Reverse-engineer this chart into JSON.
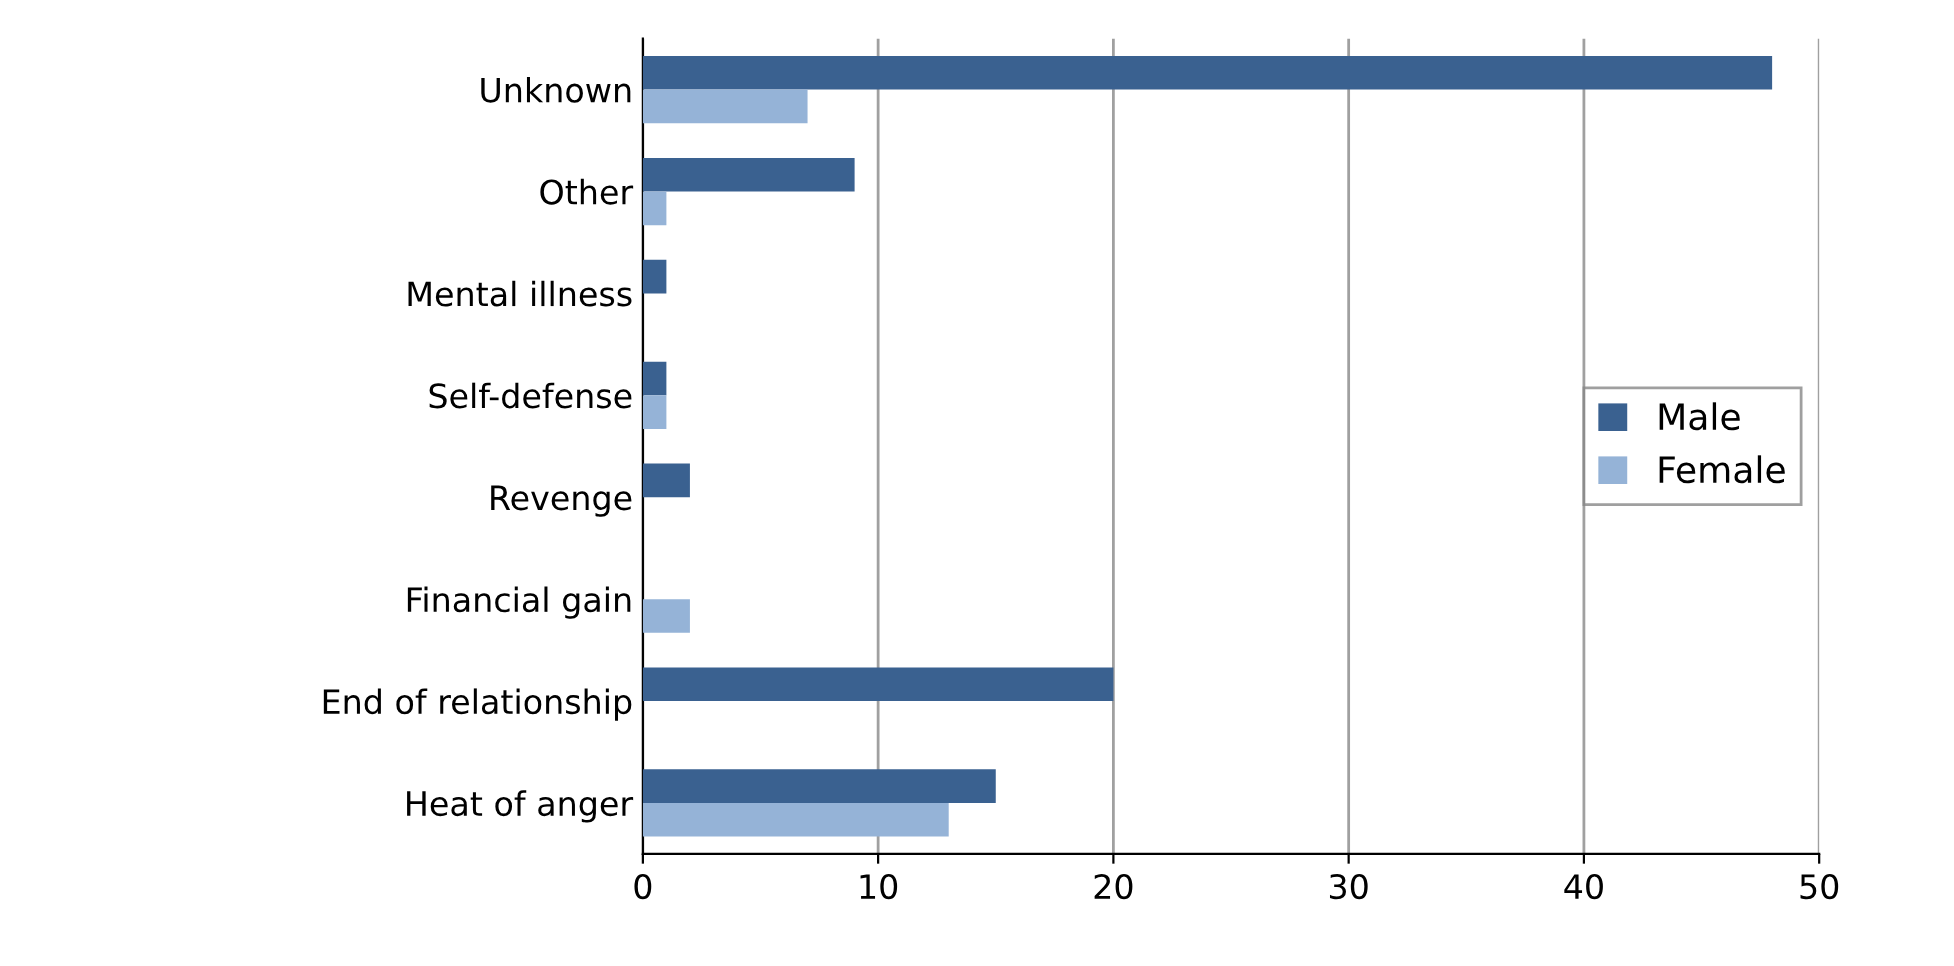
{
  "chart_data": {
    "type": "bar",
    "orientation": "horizontal",
    "categories": [
      "Unknown",
      "Other",
      "Mental illness",
      "Self-defense",
      "Revenge",
      "Financial gain",
      "End of relationship",
      "Heat of anger"
    ],
    "series": [
      {
        "name": "Male",
        "color": "#3a6190",
        "values": [
          48,
          9,
          1,
          1,
          2,
          0,
          20,
          15
        ]
      },
      {
        "name": "Female",
        "color": "#95b3d7",
        "values": [
          7,
          1,
          0,
          1,
          0,
          2,
          0,
          13
        ]
      }
    ],
    "xlim": [
      0,
      50
    ],
    "xticks": [
      0,
      10,
      20,
      30,
      40,
      50
    ],
    "grid": "x",
    "legend": "right"
  }
}
